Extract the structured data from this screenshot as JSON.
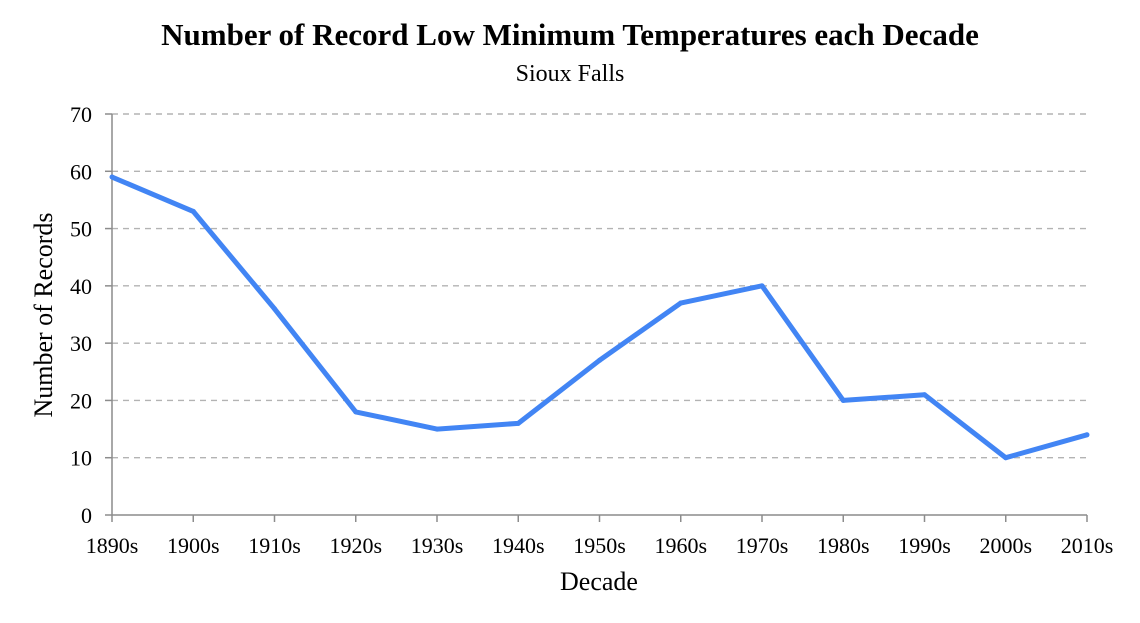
{
  "chart_data": {
    "type": "line",
    "title": "Number of Record Low Minimum Temperatures each Decade",
    "subtitle": "Sioux Falls",
    "xlabel": "Decade",
    "ylabel": "Number of Records",
    "categories": [
      "1890s",
      "1900s",
      "1910s",
      "1920s",
      "1930s",
      "1940s",
      "1950s",
      "1960s",
      "1970s",
      "1980s",
      "1990s",
      "2000s",
      "2010s"
    ],
    "series": [
      {
        "values": [
          59,
          53,
          36,
          18,
          15,
          16,
          27,
          37,
          40,
          20,
          21,
          10,
          14
        ]
      }
    ],
    "ylim": [
      0,
      70
    ],
    "yticks": [
      0,
      10,
      20,
      30,
      40,
      50,
      60,
      70
    ],
    "grid": true,
    "line_color": "#4285f4"
  }
}
